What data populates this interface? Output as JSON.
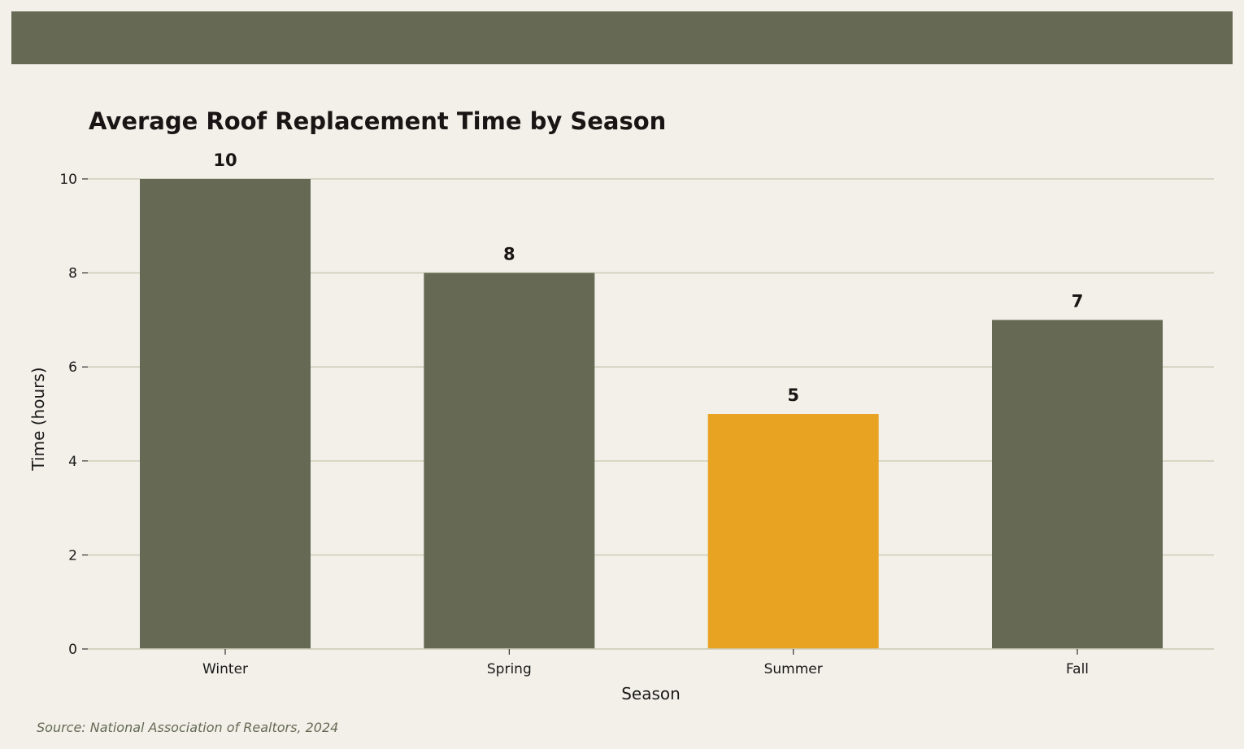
{
  "header_color": "#666a55",
  "source": "Source: National Association of Realtors, 2024",
  "colors": {
    "bar_default": "#666a55",
    "bar_highlight": "#e8a323",
    "grid": "#d0ceba",
    "background": "#f2f0e9"
  },
  "chart_data": {
    "type": "bar",
    "title": "Average Roof Replacement Time by Season",
    "xlabel": "Season",
    "ylabel": "Time (hours)",
    "categories": [
      "Winter",
      "Spring",
      "Summer",
      "Fall"
    ],
    "values": [
      10,
      8,
      5,
      7
    ],
    "highlight": "Summer",
    "ylim": [
      0,
      10
    ],
    "yticks": [
      0,
      2,
      4,
      6,
      8,
      10
    ],
    "grid": true
  }
}
